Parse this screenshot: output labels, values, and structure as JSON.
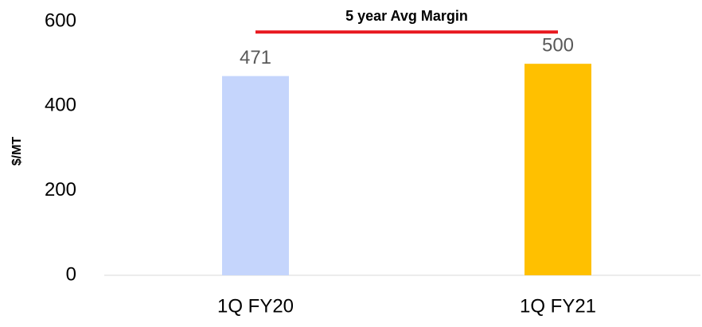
{
  "chart_data": {
    "type": "bar",
    "y_label": "$/MT",
    "categories": [
      "1Q FY20",
      "1Q FY21"
    ],
    "values": [
      471,
      500
    ],
    "colors": [
      "#c5d5fc",
      "#ffc000"
    ],
    "ylim": [
      0,
      600
    ],
    "yticks": [
      0,
      200,
      400,
      600
    ],
    "grid": false,
    "reference_line": {
      "label": "5 year Avg Margin",
      "value": 575,
      "color": "#e8181f"
    }
  }
}
